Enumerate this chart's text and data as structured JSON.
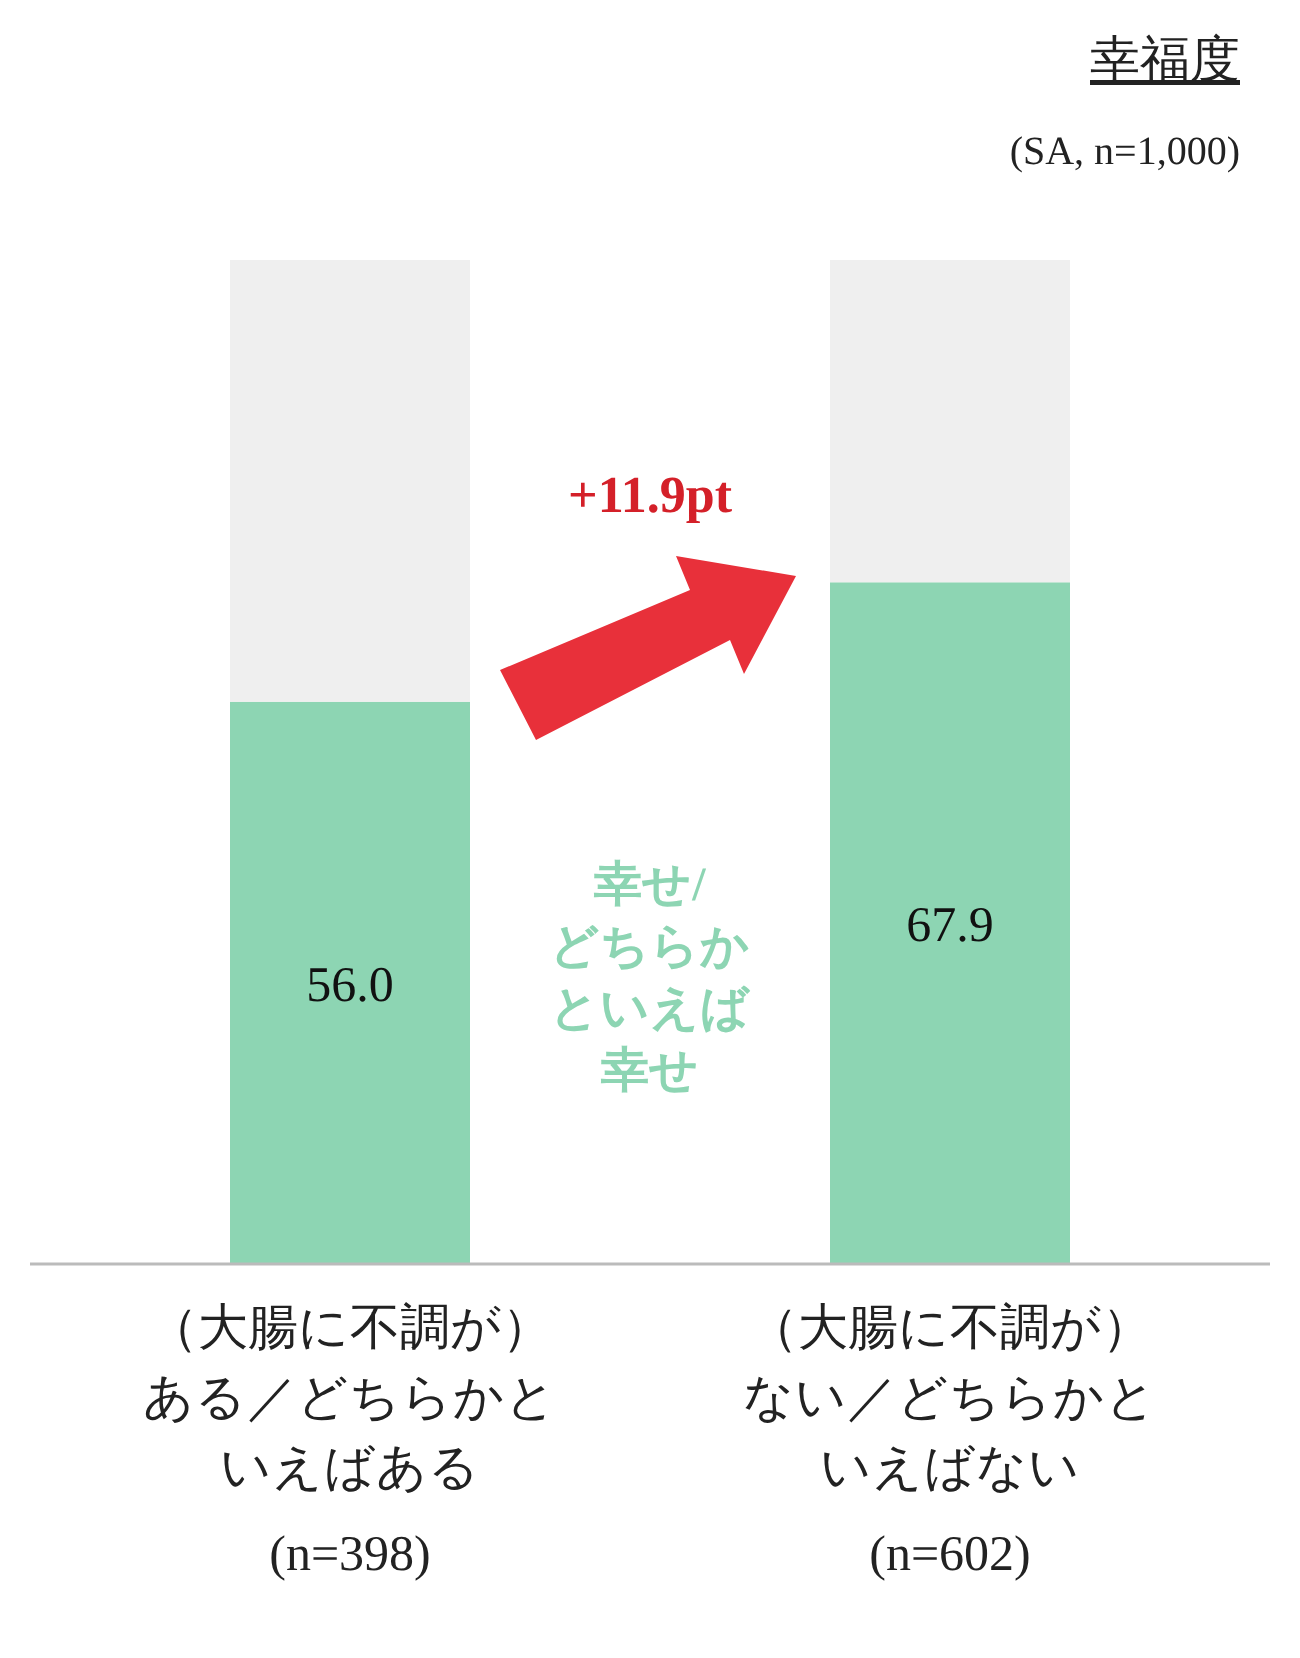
{
  "chart_data": {
    "type": "bar",
    "title": "幸福度",
    "subtitle": "(SA, n=1,000)",
    "categories": [
      "（大腸に不調が）ある／どちらかといえばある(n=398)",
      "（大腸に不調が）ない／どちらかといえばない(n=602)"
    ],
    "stacked": true,
    "ylim": [
      0,
      100
    ],
    "series": [
      {
        "name": "幸せ/どちらかといえば幸せ",
        "color": "#8dd5b3",
        "values": [
          56.0,
          67.9
        ],
        "value_labels": [
          "56.0",
          "67.9"
        ]
      },
      {
        "color": "#efefef",
        "values": [
          44.0,
          32.1
        ]
      }
    ],
    "annotations": [
      "+11.9pt"
    ]
  }
}
